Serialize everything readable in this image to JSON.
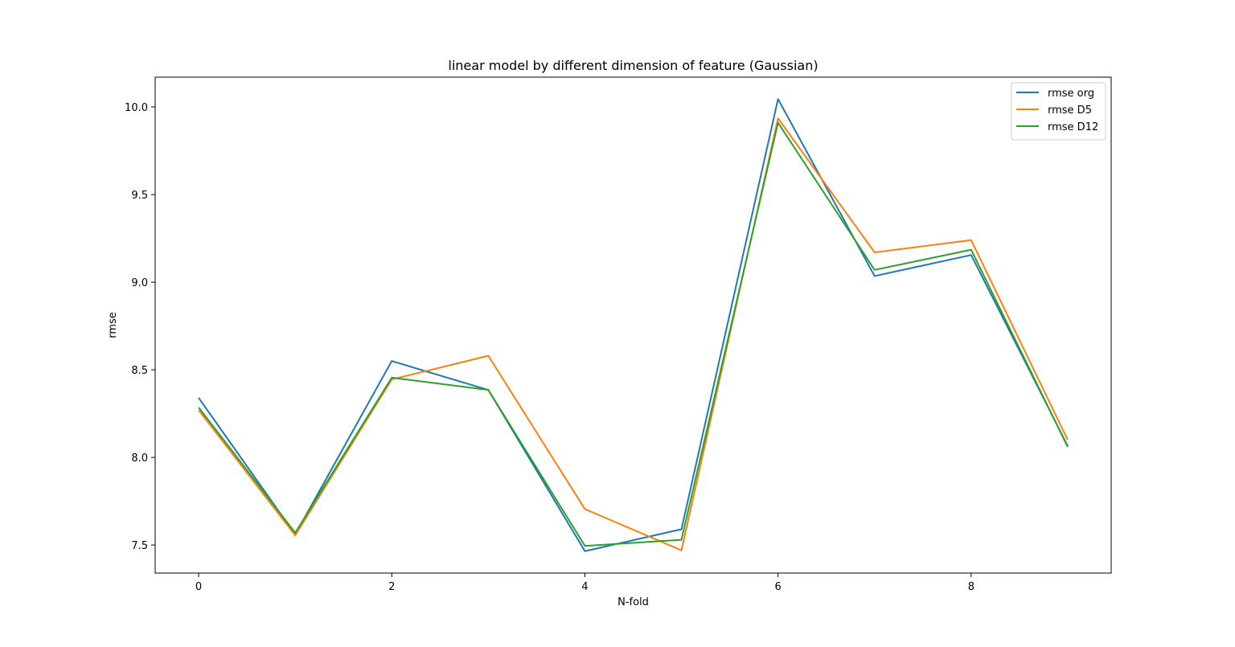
{
  "chart_data": {
    "type": "line",
    "title": "linear model by different dimension of feature (Gaussian)",
    "xlabel": "N-fold",
    "ylabel": "rmse",
    "x": [
      0,
      1,
      2,
      3,
      4,
      5,
      6,
      7,
      8,
      9
    ],
    "xlim": [
      -0.45,
      9.45
    ],
    "ylim": [
      7.34,
      10.17
    ],
    "xticks": [
      0,
      2,
      4,
      6,
      8
    ],
    "yticks": [
      7.5,
      8.0,
      8.5,
      9.0,
      9.5,
      10.0
    ],
    "xtick_labels": [
      "0",
      "2",
      "4",
      "6",
      "8"
    ],
    "ytick_labels": [
      "7.5",
      "8.0",
      "8.5",
      "9.0",
      "9.5",
      "10.0"
    ],
    "grid": false,
    "legend_position": "top-right",
    "series": [
      {
        "name": "rmse org",
        "color": "#1f77b4",
        "values": [
          8.34,
          7.56,
          8.55,
          8.385,
          7.465,
          7.59,
          10.045,
          9.035,
          9.155,
          8.065
        ]
      },
      {
        "name": "rmse D5",
        "color": "#ff7f0e",
        "values": [
          8.27,
          7.555,
          8.445,
          8.58,
          7.705,
          7.47,
          9.935,
          9.17,
          9.24,
          8.1
        ]
      },
      {
        "name": "rmse D12",
        "color": "#2ca02c",
        "values": [
          8.285,
          7.57,
          8.455,
          8.385,
          7.495,
          7.53,
          9.91,
          9.07,
          9.185,
          8.06
        ]
      }
    ]
  }
}
